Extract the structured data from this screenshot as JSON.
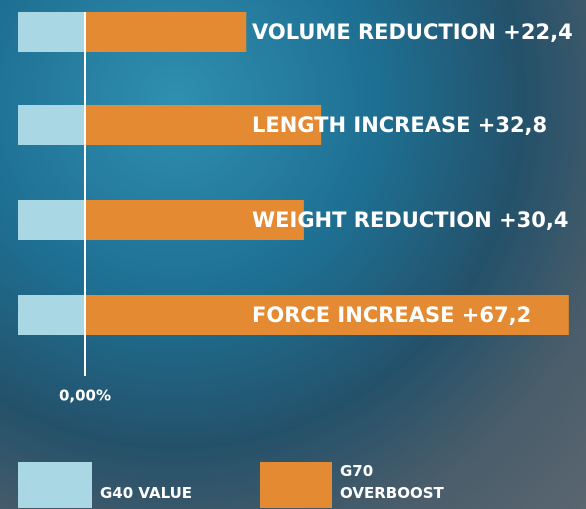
{
  "chart_data": {
    "type": "bar",
    "orientation": "horizontal",
    "categories": [
      "VOLUME REDUCTION",
      "LENGTH INCREASE",
      "WEIGHT REDUCTION",
      "FORCE INCREASE"
    ],
    "series": [
      {
        "name": "G40 VALUE",
        "color": "#a9d8e4",
        "values": [
          0,
          0,
          0,
          0
        ]
      },
      {
        "name": "G70 OVERBOOST",
        "color": "#e38a33",
        "values": [
          22.4,
          32.8,
          30.4,
          67.2
        ],
        "value_labels": [
          "+22,4",
          "+32,8",
          "+30,4",
          "+67,2"
        ]
      }
    ],
    "xlim": [
      0,
      70
    ],
    "xticks": [
      {
        "value": 0,
        "label": "0,00%"
      }
    ]
  }
}
